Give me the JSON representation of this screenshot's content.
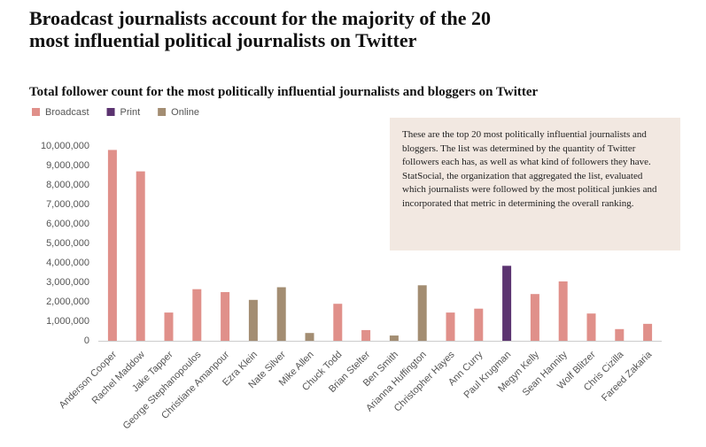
{
  "chart_data": {
    "type": "bar",
    "title": "Broadcast journalists account for the majority of the 20 most influential political journalists on Twitter",
    "subtitle": "Total follower count for the most politically influential journalists and bloggers on Twitter",
    "annotation": "These are the top 20 most politically influential journalists and bloggers. The list was determined by the quantity of Twitter followers each has, as well as what kind of followers they have. StatSocial, the organization that aggregated the list, evaluated which journalists were followed by the most political junkies and incorporated that metric in determining the overall ranking.",
    "categories": [
      "Anderson Cooper",
      "Rachel Maddow",
      "Jake Tapper",
      "George Stephanopoulos",
      "Christiane Amanpour",
      "Ezra Klein",
      "Nate Silver",
      "Mike Allen",
      "Chuck Todd",
      "Brian Stelter",
      "Ben Smith",
      "Arianna Huffington",
      "Christopher Hayes",
      "Ann Curry",
      "Paul Krugman",
      "Megyn Kelly",
      "Sean Hannity",
      "Wolf Blitzer",
      "Chris Cizilla",
      "Fareed Zakaria"
    ],
    "series": [
      {
        "name": "Broadcast",
        "color": "#e0908a",
        "values": [
          9800000,
          8700000,
          1450000,
          2650000,
          2500000,
          null,
          null,
          null,
          1900000,
          550000,
          null,
          null,
          1450000,
          1650000,
          null,
          2400000,
          3050000,
          1400000,
          600000,
          870000
        ]
      },
      {
        "name": "Print",
        "color": "#5b3370",
        "values": [
          null,
          null,
          null,
          null,
          null,
          null,
          null,
          null,
          null,
          null,
          null,
          null,
          null,
          null,
          3850000,
          null,
          null,
          null,
          null,
          null
        ]
      },
      {
        "name": "Online",
        "color": "#a38d72",
        "values": [
          null,
          null,
          null,
          null,
          null,
          2100000,
          2750000,
          400000,
          null,
          null,
          270000,
          2850000,
          null,
          null,
          null,
          null,
          null,
          null,
          null,
          null
        ]
      }
    ],
    "ylim": [
      0,
      10000000
    ],
    "yticks": [
      0,
      {
        "value": 1000000,
        "label": "1,000,000"
      },
      {
        "value": 2000000,
        "label": "2,000,000"
      },
      {
        "value": 3000000,
        "label": "3,000,000"
      },
      {
        "value": 4000000,
        "label": "4,000,000"
      },
      {
        "value": 5000000,
        "label": "5,000,000"
      },
      {
        "value": 6000000,
        "label": "6,000,000"
      },
      {
        "value": 7000000,
        "label": "7,000,000"
      },
      {
        "value": 8000000,
        "label": "8,000,000"
      },
      {
        "value": 9000000,
        "label": "9,000,000"
      },
      {
        "value": 10000000,
        "label": "10,000,000"
      }
    ],
    "grid": false
  }
}
